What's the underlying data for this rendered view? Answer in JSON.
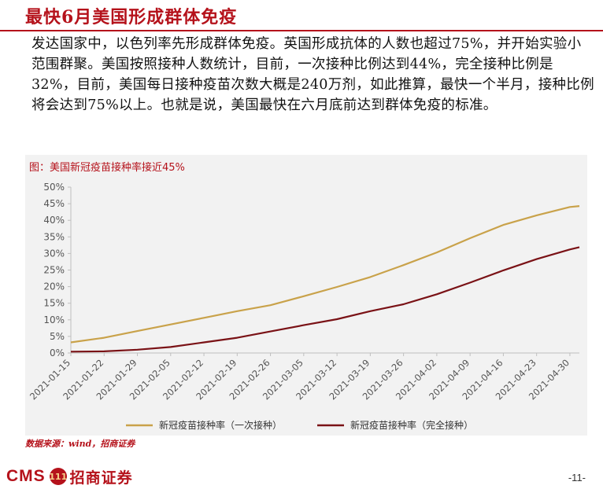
{
  "page": {
    "title": "最快6月美国形成群体免疫",
    "paragraph": "发达国家中，以色列率先形成群体免疫。英国形成抗体的人数也超过75%，并开始实验小范围群聚。美国按照接种人数统计，目前，一次接种比例达到44%，完全接种比例是32%，目前，美国每日接种疫苗次数大概是240万剂，如此推算，最快一个半月，接种比例将会达到75%以上。也就是说，美国最快在六月底前达到群体免疫的标准。",
    "source": "数据来源：wind，招商证券",
    "logo_text": "CMS",
    "logo_mark": "111",
    "logo_name": "招商证券",
    "page_number": "-11-"
  },
  "chart_data": {
    "type": "line",
    "title": "图：美国新冠疫苗接种率接近45%",
    "xlabel": "",
    "ylabel": "",
    "ylim": [
      0,
      50
    ],
    "yticks": [
      "0%",
      "5%",
      "10%",
      "15%",
      "20%",
      "25%",
      "30%",
      "35%",
      "40%",
      "45%",
      "50%"
    ],
    "x_start": "2021-01-15",
    "x_end": "2021-05-02",
    "xticks": [
      "2021-01-15",
      "2021-01-22",
      "2021-01-29",
      "2021-02-05",
      "2021-02-12",
      "2021-02-19",
      "2021-02-26",
      "2021-03-05",
      "2021-03-12",
      "2021-03-19",
      "2021-03-26",
      "2021-04-02",
      "2021-04-09",
      "2021-04-16",
      "2021-04-23",
      "2021-04-30"
    ],
    "grid": false,
    "legend_position": "bottom",
    "series": [
      {
        "name": "新冠疫苗接种率（一次接种）",
        "color": "#c9a24a",
        "points": [
          [
            "2021-01-15",
            3.2
          ],
          [
            "2021-01-22",
            4.6
          ],
          [
            "2021-01-29",
            6.6
          ],
          [
            "2021-02-05",
            8.6
          ],
          [
            "2021-02-12",
            10.6
          ],
          [
            "2021-02-19",
            12.6
          ],
          [
            "2021-02-26",
            14.4
          ],
          [
            "2021-03-05",
            17.1
          ],
          [
            "2021-03-12",
            19.9
          ],
          [
            "2021-03-19",
            22.9
          ],
          [
            "2021-03-26",
            26.5
          ],
          [
            "2021-04-02",
            30.3
          ],
          [
            "2021-04-09",
            34.6
          ],
          [
            "2021-04-16",
            38.6
          ],
          [
            "2021-04-23",
            41.5
          ],
          [
            "2021-04-30",
            44.0
          ],
          [
            "2021-05-02",
            44.3
          ]
        ]
      },
      {
        "name": "新冠疫苗接种率（完全接种）",
        "color": "#7a1216",
        "points": [
          [
            "2021-01-15",
            0.4
          ],
          [
            "2021-01-22",
            0.5
          ],
          [
            "2021-01-29",
            1.0
          ],
          [
            "2021-02-05",
            1.8
          ],
          [
            "2021-02-12",
            3.2
          ],
          [
            "2021-02-19",
            4.6
          ],
          [
            "2021-02-26",
            6.5
          ],
          [
            "2021-03-05",
            8.4
          ],
          [
            "2021-03-12",
            10.2
          ],
          [
            "2021-03-19",
            12.6
          ],
          [
            "2021-03-26",
            14.7
          ],
          [
            "2021-04-02",
            17.7
          ],
          [
            "2021-04-09",
            21.2
          ],
          [
            "2021-04-16",
            24.9
          ],
          [
            "2021-04-23",
            28.3
          ],
          [
            "2021-04-30",
            31.2
          ],
          [
            "2021-05-02",
            31.9
          ]
        ]
      }
    ]
  }
}
